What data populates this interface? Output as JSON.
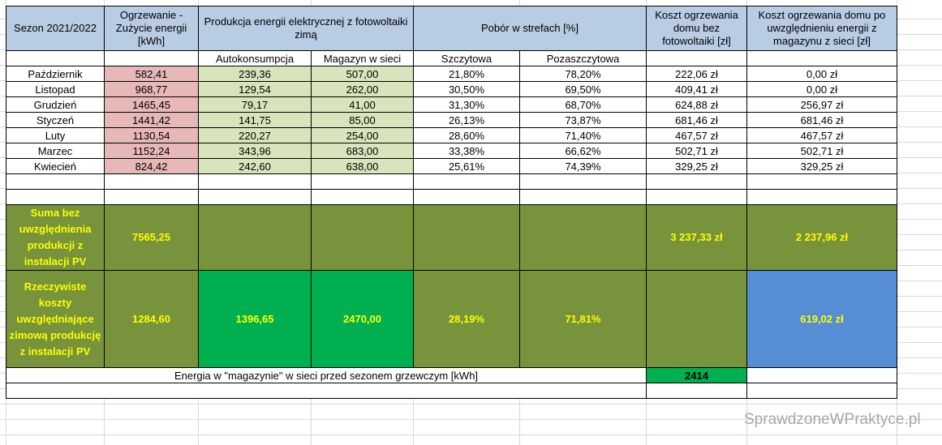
{
  "header": {
    "season": "Sezon 2021/2022",
    "heating": "Ogrzewanie - Zużycie energii [kWh]",
    "production": "Produkcja energii elektrycznej z fotowoltaiki zimą",
    "zones": "Pobór w strefach [%]",
    "cost_no_pv": "Koszt ogrzewania domu bez fotowoltaiki [zł]",
    "cost_with_storage": "Koszt ogrzewania domu po uwzględnieniu energii z magazynu z sieci [zł]"
  },
  "subheader": {
    "autokonsumpcja": "Autokonsumpcja",
    "magazyn": "Magazyn w sieci",
    "szczytowa": "Szczytowa",
    "pozaszczytowa": "Pozaszczytowa"
  },
  "rows": [
    {
      "month": "Październik",
      "heating": "582,41",
      "auto": "239,36",
      "storage": "507,00",
      "peak": "21,80%",
      "offpeak": "78,20%",
      "cost": "222,06 zł",
      "cost_pv": "0,00 zł"
    },
    {
      "month": "Listopad",
      "heating": "968,77",
      "auto": "129,54",
      "storage": "262,00",
      "peak": "30,50%",
      "offpeak": "69,50%",
      "cost": "409,41 zł",
      "cost_pv": "0,00 zł"
    },
    {
      "month": "Grudzień",
      "heating": "1465,45",
      "auto": "79,17",
      "storage": "41,00",
      "peak": "31,30%",
      "offpeak": "68,70%",
      "cost": "624,88 zł",
      "cost_pv": "256,97 zł"
    },
    {
      "month": "Styczeń",
      "heating": "1441,42",
      "auto": "141,75",
      "storage": "85,00",
      "peak": "26,13%",
      "offpeak": "73,87%",
      "cost": "681,46 zł",
      "cost_pv": "681,46 zł"
    },
    {
      "month": "Luty",
      "heating": "1130,54",
      "auto": "220,27",
      "storage": "254,00",
      "peak": "28,60%",
      "offpeak": "71,40%",
      "cost": "467,57 zł",
      "cost_pv": "467,57 zł"
    },
    {
      "month": "Marzec",
      "heating": "1152,24",
      "auto": "343,96",
      "storage": "683,00",
      "peak": "33,38%",
      "offpeak": "66,62%",
      "cost": "502,71 zł",
      "cost_pv": "502,71 zł"
    },
    {
      "month": "Kwiecień",
      "heating": "824,42",
      "auto": "242,60",
      "storage": "638,00",
      "peak": "25,61%",
      "offpeak": "74,39%",
      "cost": "329,25 zł",
      "cost_pv": "329,25 zł"
    }
  ],
  "summary": {
    "label": "Suma bez uwzględnienia produkcji z instalacji PV",
    "heating": "7565,25",
    "cost": "3 237,33 zł",
    "cost_pv": "2 237,96 zł"
  },
  "actual": {
    "label": "Rzeczywiste koszty uwzględniające zimową produkcję z instalacji PV",
    "heating": "1284,60",
    "auto": "1396,65",
    "storage": "2470,00",
    "peak": "28,19%",
    "offpeak": "71,81%",
    "cost_pv": "619,02 zł"
  },
  "storage_before": {
    "label": "Energia w \"magazynie\" w sieci przed sezonem grzewczym [kWh]",
    "value": "2414"
  },
  "watermark": "SprawdzoneWPraktyce.pl"
}
